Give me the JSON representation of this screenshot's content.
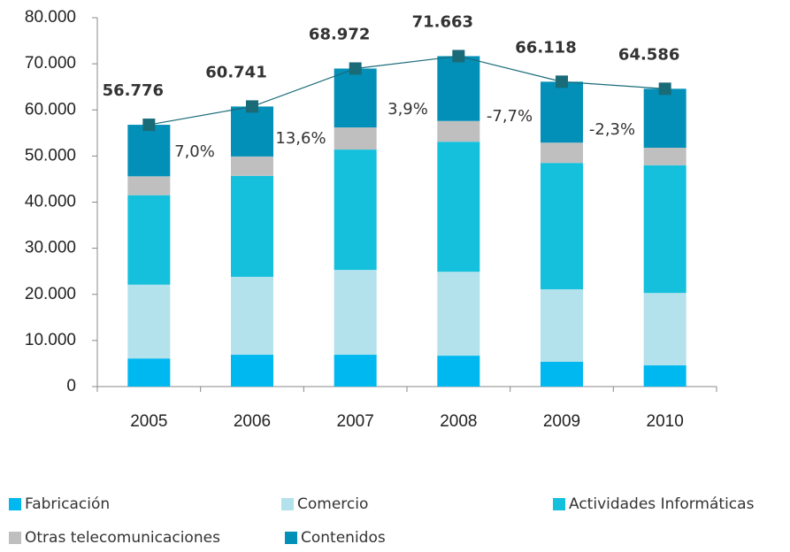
{
  "chart_data": {
    "type": "stacked-bar",
    "categories": [
      "2005",
      "2006",
      "2007",
      "2008",
      "2009",
      "2010"
    ],
    "series": [
      {
        "name": "Fabricación",
        "color": "#00b8f0",
        "values": [
          6100,
          6900,
          6900,
          6700,
          5400,
          4600
        ]
      },
      {
        "name": "Comercio",
        "color": "#b3e1ec",
        "values": [
          16000,
          16900,
          18400,
          18200,
          15700,
          15700
        ]
      },
      {
        "name": "Actividades Informáticas",
        "color": "#14c0dc",
        "values": [
          19400,
          21900,
          26100,
          28200,
          27400,
          27700
        ]
      },
      {
        "name": "Otras telecomunicaciones",
        "color": "#bfbfbf",
        "values": [
          4100,
          4200,
          4800,
          4500,
          4400,
          3800
        ]
      },
      {
        "name": "Contenidos",
        "color": "#0390b8",
        "values": [
          11176,
          10841,
          12772,
          14063,
          13218,
          12786
        ]
      }
    ],
    "totals": {
      "color": "#1a6b78",
      "values": [
        56776,
        60741,
        68972,
        71663,
        66118,
        64586
      ],
      "value_labels": [
        "56.776",
        "60.741",
        "68.972",
        "71.663",
        "66.118",
        "64.586"
      ]
    },
    "annotations": [
      "7,0%",
      "13,6%",
      "3,9%",
      "-7,7%",
      "-2,3%"
    ],
    "ylim": [
      0,
      80000
    ],
    "yticks": [
      0,
      {
        "value": 10000,
        "label": "10.000"
      },
      {
        "value": 20000,
        "label": "20.000"
      },
      {
        "value": 30000,
        "label": "30.000"
      },
      {
        "value": 40000,
        "label": "40.000"
      },
      {
        "value": 50000,
        "label": "50.000"
      },
      {
        "value": 60000,
        "label": "60.000"
      },
      {
        "value": 70000,
        "label": "70.000"
      },
      {
        "value": 80000,
        "label": "80.000"
      }
    ]
  }
}
